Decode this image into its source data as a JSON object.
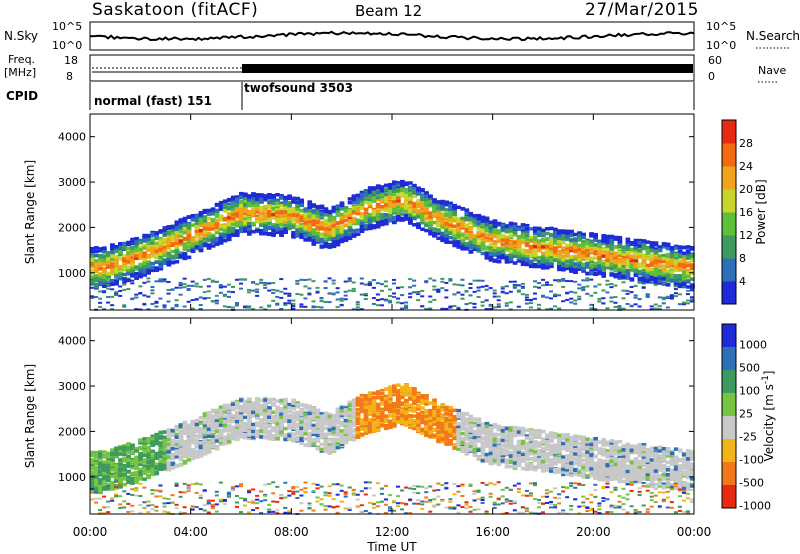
{
  "header": {
    "station": "Saskatoon (fitACF)",
    "beam": "Beam 12",
    "date": "27/Mar/2015"
  },
  "strip_panels": {
    "noise": {
      "left_label": "N.Sky",
      "right_label": "N.Search",
      "left_ticks": [
        "10^5",
        "10^0"
      ],
      "right_ticks": [
        "10^5",
        "10^0"
      ]
    },
    "freq": {
      "left_label": "Freq.",
      "left_unit": "[MHz]",
      "left_ticks": [
        "18",
        "8"
      ],
      "right_label": "Nave",
      "right_ticks": [
        "60",
        "0"
      ]
    },
    "cpid": {
      "label": "CPID",
      "programs": [
        {
          "name": "normal (fast) 151",
          "start_hour": 0,
          "end_hour": 6
        },
        {
          "name": "twofsound 3503",
          "start_hour": 6,
          "end_hour": 24
        }
      ]
    }
  },
  "chart_data": [
    {
      "type": "heatmap",
      "parameter": "power",
      "ylabel": "Slant Range [km]",
      "xlabel": "Time UT",
      "xlim": [
        0,
        24
      ],
      "ylim": [
        180,
        4500
      ],
      "x_ticks": [
        "00:00",
        "04:00",
        "08:00",
        "12:00",
        "16:00",
        "20:00",
        "00:00"
      ],
      "y_ticks": [
        1000,
        2000,
        3000,
        4000
      ],
      "colorbar": {
        "label": "Power [dB]",
        "ticks": [
          4,
          8,
          12,
          16,
          20,
          24,
          28
        ],
        "colors": [
          "#1f2bd6",
          "#2d6fb8",
          "#3e9a5f",
          "#5fbf3b",
          "#c8d62b",
          "#f2a319",
          "#f26b12",
          "#e62a10"
        ]
      },
      "echo_band_ridge": [
        {
          "hour": 0.5,
          "range_km": 1100
        },
        {
          "hour": 2,
          "range_km": 1350
        },
        {
          "hour": 4,
          "range_km": 1800
        },
        {
          "hour": 6,
          "range_km": 2300
        },
        {
          "hour": 8,
          "range_km": 2250
        },
        {
          "hour": 9.5,
          "range_km": 1950
        },
        {
          "hour": 11,
          "range_km": 2400
        },
        {
          "hour": 12.5,
          "range_km": 2600
        },
        {
          "hour": 14,
          "range_km": 2150
        },
        {
          "hour": 16,
          "range_km": 1700
        },
        {
          "hour": 18,
          "range_km": 1550
        },
        {
          "hour": 20,
          "range_km": 1400
        },
        {
          "hour": 22,
          "range_km": 1250
        },
        {
          "hour": 24,
          "range_km": 1100
        }
      ]
    },
    {
      "type": "heatmap",
      "parameter": "velocity",
      "ylabel": "Slant Range [km]",
      "xlabel": "Time UT",
      "xlim": [
        0,
        24
      ],
      "ylim": [
        180,
        4500
      ],
      "x_ticks": [
        "00:00",
        "04:00",
        "08:00",
        "12:00",
        "16:00",
        "20:00",
        "00:00"
      ],
      "y_ticks": [
        1000,
        2000,
        3000,
        4000
      ],
      "colorbar": {
        "label": "Velocity [m s^-1]",
        "ticks": [
          1000,
          500,
          100,
          25,
          -25,
          -100,
          -500,
          -1000
        ],
        "colors": [
          "#1f2bd6",
          "#2d6fb8",
          "#3e9a5f",
          "#76c442",
          "#c8c8c8",
          "#f2b419",
          "#f2781a",
          "#e62a10"
        ]
      },
      "echo_band_ridge": [
        {
          "hour": 0.5,
          "range_km": 1100
        },
        {
          "hour": 2,
          "range_km": 1350
        },
        {
          "hour": 4,
          "range_km": 1800
        },
        {
          "hour": 6,
          "range_km": 2300
        },
        {
          "hour": 8,
          "range_km": 2250
        },
        {
          "hour": 9.5,
          "range_km": 1950
        },
        {
          "hour": 11,
          "range_km": 2400
        },
        {
          "hour": 12.5,
          "range_km": 2600
        },
        {
          "hour": 14,
          "range_km": 2150
        },
        {
          "hour": 16,
          "range_km": 1700
        },
        {
          "hour": 18,
          "range_km": 1550
        },
        {
          "hour": 20,
          "range_km": 1400
        },
        {
          "hour": 22,
          "range_km": 1250
        },
        {
          "hour": 24,
          "range_km": 1100
        }
      ]
    }
  ]
}
